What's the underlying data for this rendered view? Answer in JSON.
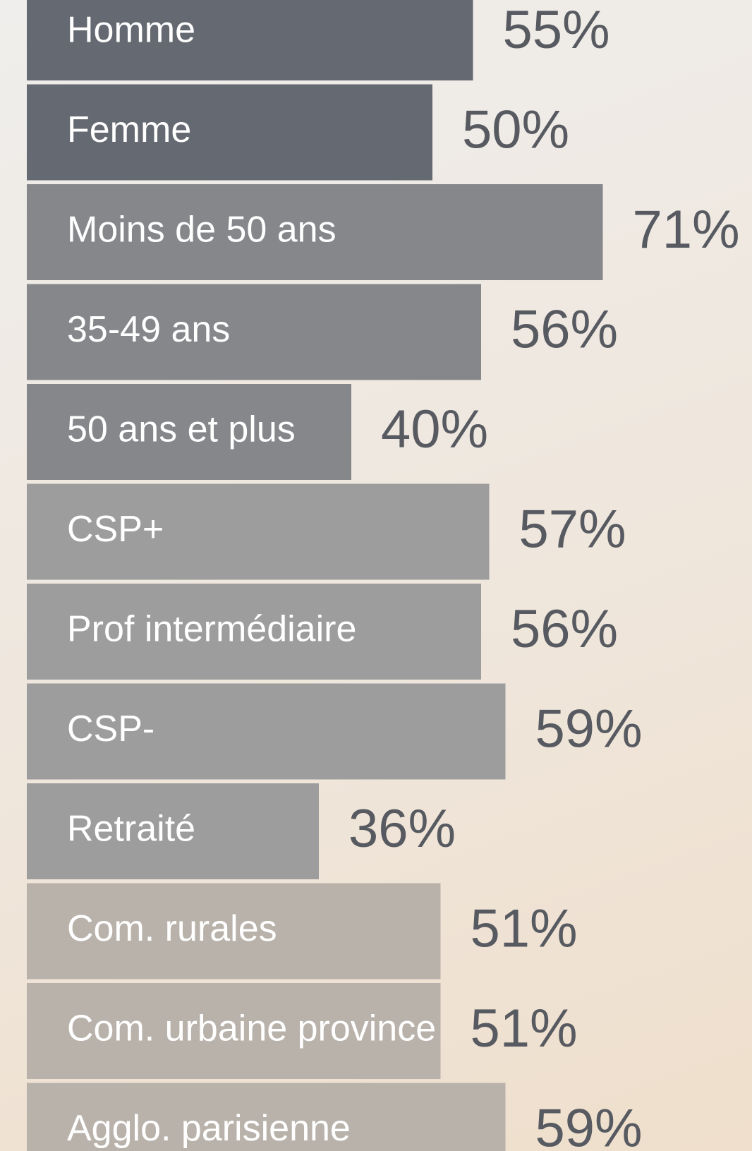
{
  "chart_data": {
    "type": "bar",
    "orientation": "horizontal",
    "categories": [
      "Homme",
      "Femme",
      "Moins de 50 ans",
      "35-49 ans",
      "50 ans et plus",
      "CSP+",
      "Prof intermédiaire",
      "CSP-",
      "Retraité",
      "Com. rurales",
      "Com. urbaine province",
      "Agglo. parisienne"
    ],
    "values": [
      55,
      50,
      71,
      56,
      40,
      57,
      56,
      59,
      36,
      51,
      51,
      59
    ],
    "value_labels": [
      "55%",
      "50%",
      "71%",
      "56%",
      "40%",
      "57%",
      "56%",
      "59%",
      "36%",
      "51%",
      "51%",
      "59%"
    ],
    "colors": [
      "#656a72",
      "#656a72",
      "#85878b",
      "#85878b",
      "#85878b",
      "#9d9d9d",
      "#9d9d9d",
      "#9d9d9d",
      "#9d9d9d",
      "#b9b2ab",
      "#b9b2ab",
      "#b9b2ab"
    ]
  }
}
